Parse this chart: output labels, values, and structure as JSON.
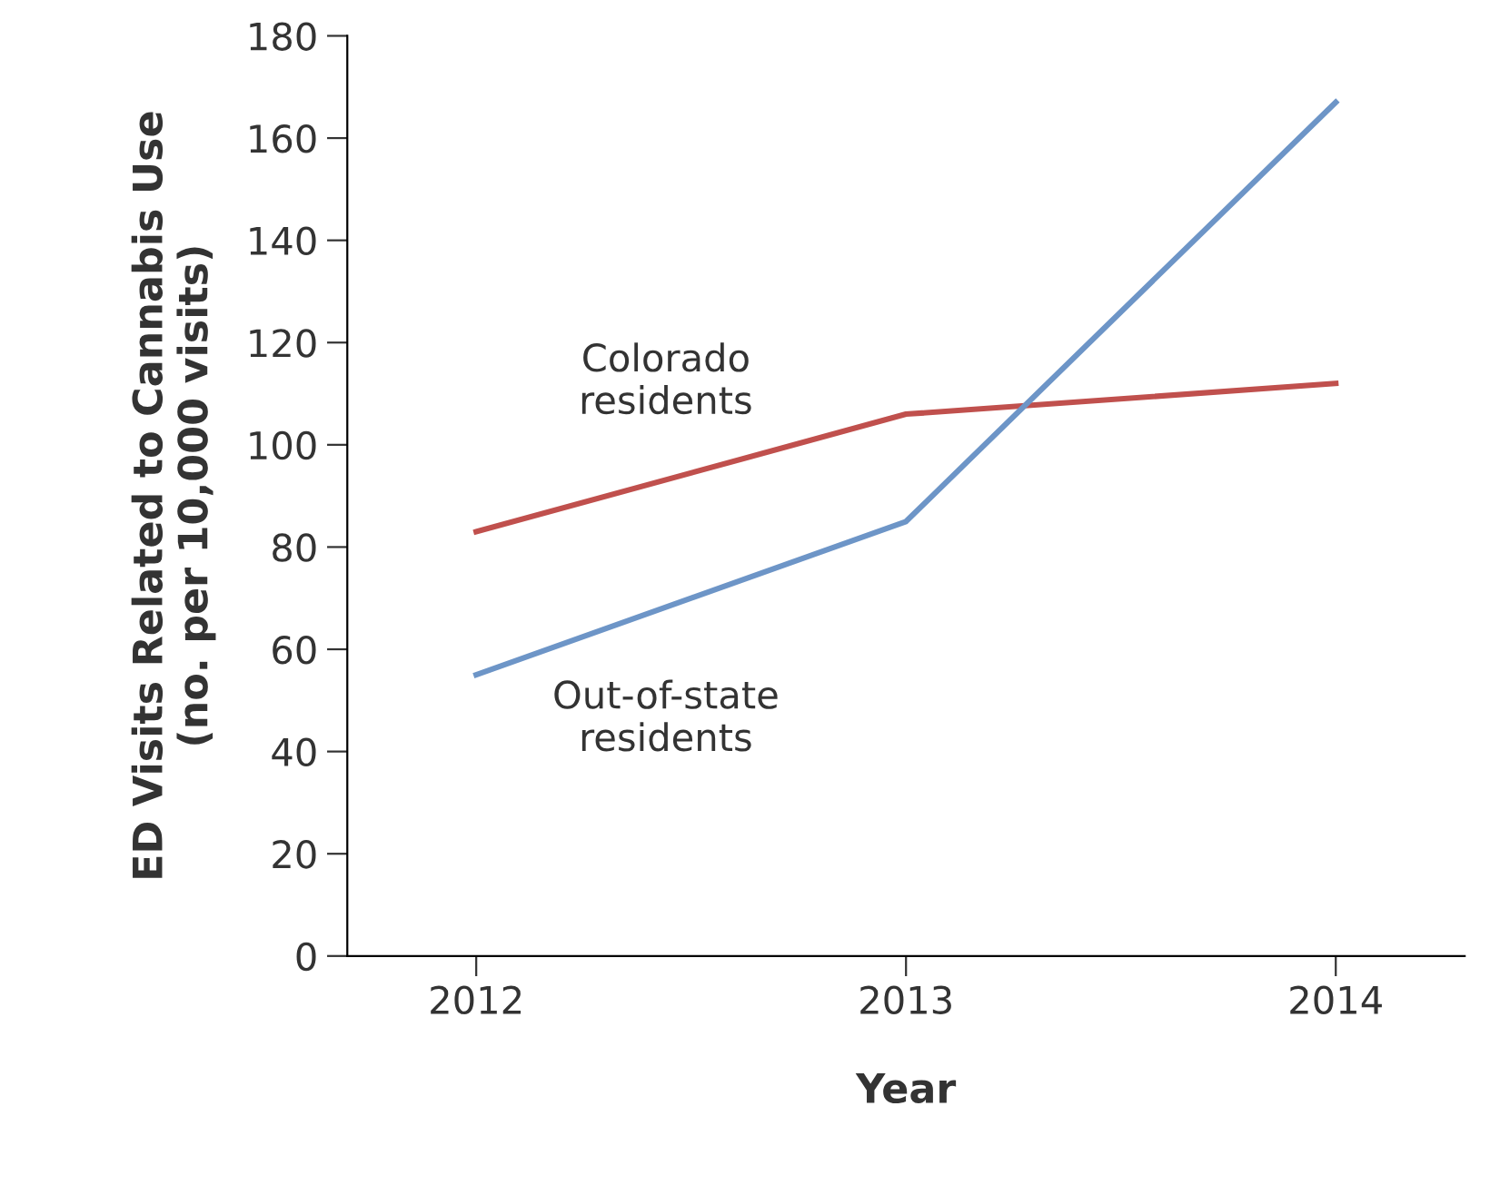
{
  "chart_data": {
    "type": "line",
    "xlabel": "Year",
    "ylabel": "ED Visits Related to Cannabis Use\n(no. per 10,000 visits)",
    "x": [
      2012,
      2013,
      2014
    ],
    "xlim": [
      2011.7,
      2014.3
    ],
    "xticks": [
      2012,
      2013,
      2014
    ],
    "ylim": [
      0,
      180
    ],
    "yticks": [
      0,
      20,
      40,
      60,
      80,
      100,
      120,
      140,
      160,
      180
    ],
    "series": [
      {
        "name": "Colorado\nresidents",
        "color": "#c0504d",
        "values": [
          83,
          106,
          112
        ]
      },
      {
        "name": "Out-of-state\nresidents",
        "color": "#6d95c7",
        "values": [
          55,
          85,
          167
        ]
      }
    ],
    "grid": false,
    "legend": false,
    "marker": "none",
    "line_style": "solid"
  }
}
